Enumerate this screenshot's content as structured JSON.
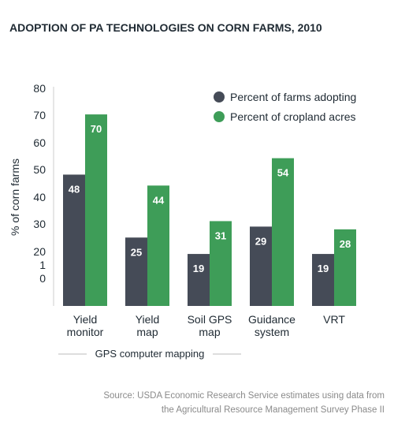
{
  "chart_data": {
    "type": "bar",
    "title": "ADOPTION OF PA TECHNOLOGIES ON CORN FARMS, 2010",
    "ylabel": "% of corn farms",
    "y_ticks": [
      "80",
      "70",
      "60",
      "50",
      "40",
      "30",
      "20",
      "1",
      "0"
    ],
    "categories": [
      [
        "Yield",
        "monitor"
      ],
      [
        "Yield",
        "map"
      ],
      [
        "Soil GPS",
        "map"
      ],
      [
        "Guidance",
        "system"
      ],
      [
        "VRT"
      ]
    ],
    "series": [
      {
        "name": "Percent of farms adopting",
        "color": "#454b57",
        "values": [
          48,
          25,
          19,
          29,
          19
        ]
      },
      {
        "name": "Percent of cropland acres",
        "color": "#3e9d58",
        "values": [
          70,
          44,
          31,
          54,
          28
        ]
      }
    ],
    "group_label": "GPS computer mapping",
    "legend_position": "top-right",
    "source": [
      "Source: USDA Economic Research Service estimates using data from",
      "the Agricultural Resource Management Survey Phase II"
    ]
  }
}
